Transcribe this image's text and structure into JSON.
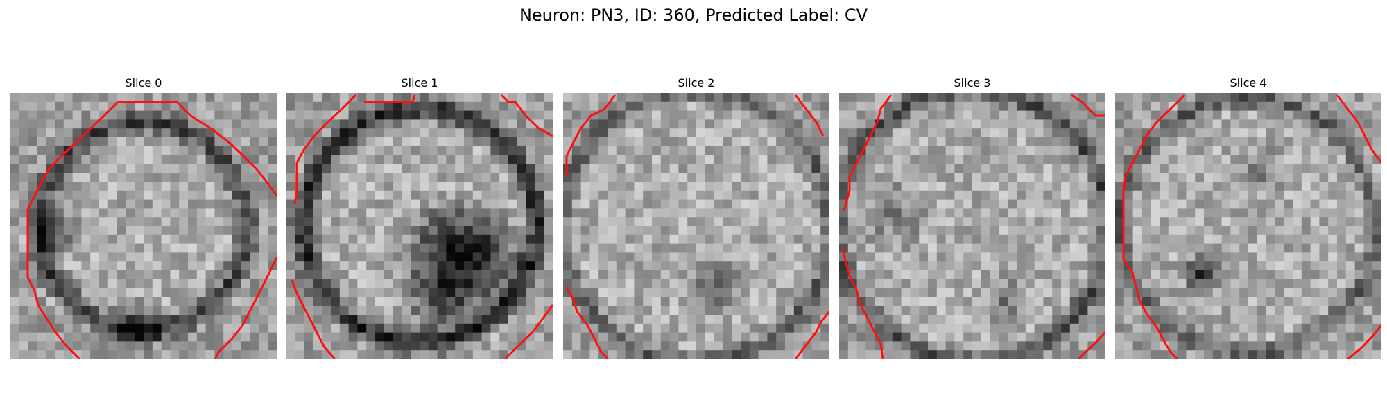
{
  "figure": {
    "title": "Neuron: PN3, ID: 360, Predicted Label: CV"
  },
  "colors": {
    "contour": "#ff1010",
    "background": "#ffffff"
  },
  "slices": [
    {
      "title": "Slice 0",
      "image": "grayscale-microscopy-slice-with-red-contour"
    },
    {
      "title": "Slice 1",
      "image": "grayscale-microscopy-slice-with-red-contour"
    },
    {
      "title": "Slice 2",
      "image": "grayscale-microscopy-slice-with-red-contour"
    },
    {
      "title": "Slice 3",
      "image": "grayscale-microscopy-slice-with-red-contour"
    },
    {
      "title": "Slice 4",
      "image": "grayscale-microscopy-slice-with-red-contour"
    }
  ]
}
